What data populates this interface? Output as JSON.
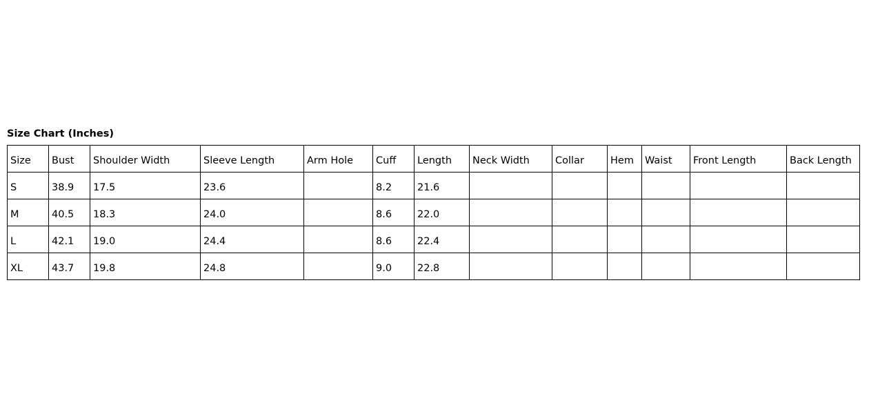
{
  "title": "Size Chart (Inches)",
  "headers": [
    "Size",
    "Bust",
    "Shoulder Width",
    "Sleeve Length",
    "Arm Hole",
    "Cuff",
    "Length",
    "Neck Width",
    "Collar",
    "Hem",
    "Waist",
    "Front Length",
    "Back Length"
  ],
  "rows": [
    [
      "S",
      "38.9",
      "17.5",
      "23.6",
      "",
      "8.2",
      "21.6",
      "",
      "",
      "",
      "",
      "",
      ""
    ],
    [
      "M",
      "40.5",
      "18.3",
      "24.0",
      "",
      "8.6",
      "22.0",
      "",
      "",
      "",
      "",
      "",
      ""
    ],
    [
      "L",
      "42.1",
      "19.0",
      "24.4",
      "",
      "8.6",
      "22.4",
      "",
      "",
      "",
      "",
      "",
      ""
    ],
    [
      "XL",
      "43.7",
      "19.8",
      "24.8",
      "",
      "9.0",
      "22.8",
      "",
      "",
      "",
      "",
      "",
      ""
    ]
  ]
}
